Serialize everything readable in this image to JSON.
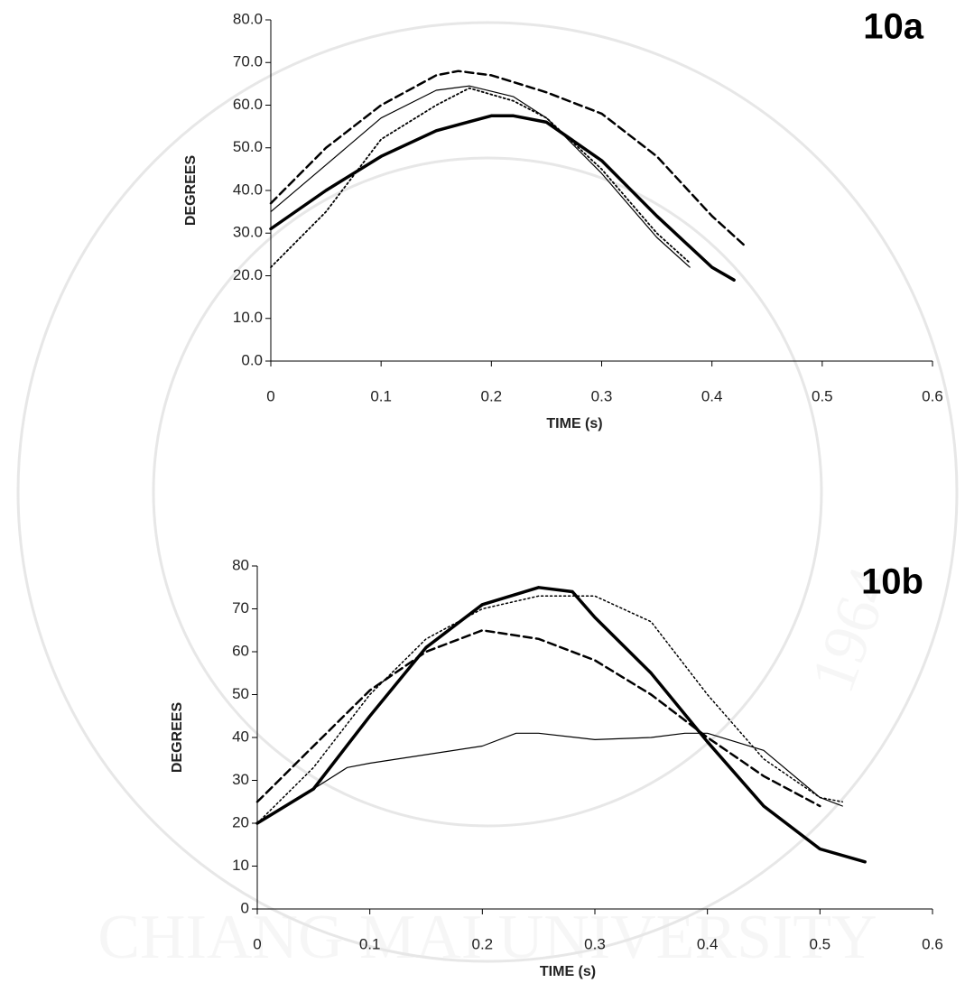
{
  "watermark": {
    "name": "CHIANG MAI UNIVERSITY",
    "year": "1964"
  },
  "chart_data": [
    {
      "type": "line",
      "annotation": "10a",
      "xlabel": "TIME (s)",
      "ylabel": "DEGREES",
      "xlim": [
        0,
        0.6
      ],
      "xticks": [
        0,
        0.1,
        0.2,
        0.3,
        0.4,
        0.5,
        0.6
      ],
      "ylim": [
        0,
        80
      ],
      "yticks": [
        {
          "value": 0,
          "label": "0.0"
        },
        {
          "value": 10,
          "label": "10.0"
        },
        {
          "value": 20,
          "label": "20.0"
        },
        {
          "value": 30,
          "label": "30.0"
        },
        {
          "value": 40,
          "label": "40.0"
        },
        {
          "value": 50,
          "label": "50.0"
        },
        {
          "value": 60,
          "label": "60.0"
        },
        {
          "value": 70,
          "label": "70.0"
        },
        {
          "value": 80,
          "label": "80.0"
        }
      ],
      "series": [
        {
          "color": "#000000",
          "line_style": "solid",
          "line_width": 3.5,
          "x": [
            0,
            0.05,
            0.1,
            0.15,
            0.2,
            0.22,
            0.25,
            0.3,
            0.35,
            0.4,
            0.42
          ],
          "values": [
            31,
            40,
            48,
            54,
            57.5,
            57.5,
            56,
            47,
            34,
            22,
            19
          ]
        },
        {
          "color": "#000000",
          "line_style": "solid",
          "line_width": 1.2,
          "x": [
            0,
            0.05,
            0.1,
            0.15,
            0.18,
            0.22,
            0.25,
            0.3,
            0.35,
            0.38
          ],
          "values": [
            35,
            46,
            57,
            63.5,
            64.5,
            62,
            57,
            44,
            29,
            22
          ]
        },
        {
          "color": "#000000",
          "line_style": "dashed",
          "line_width": 2.5,
          "x": [
            0,
            0.05,
            0.1,
            0.15,
            0.17,
            0.2,
            0.25,
            0.3,
            0.35,
            0.4,
            0.43
          ],
          "values": [
            37,
            50,
            60,
            67,
            68,
            67,
            63,
            58,
            48,
            34,
            27
          ]
        },
        {
          "color": "#000000",
          "line_style": "dotted",
          "line_width": 1.8,
          "x": [
            0,
            0.05,
            0.1,
            0.15,
            0.18,
            0.22,
            0.25,
            0.3,
            0.35,
            0.38
          ],
          "values": [
            22,
            35,
            52,
            60,
            64,
            61,
            57,
            45,
            30,
            23
          ]
        }
      ]
    },
    {
      "type": "line",
      "annotation": "10b",
      "xlabel": "TIME (s)",
      "ylabel": "DEGREES",
      "xlim": [
        0,
        0.6
      ],
      "xticks": [
        0,
        0.1,
        0.2,
        0.3,
        0.4,
        0.5,
        0.6
      ],
      "ylim": [
        0,
        80
      ],
      "yticks": [
        0,
        10,
        20,
        30,
        40,
        50,
        60,
        70,
        80
      ],
      "series": [
        {
          "color": "#000000",
          "line_style": "solid",
          "line_width": 3.5,
          "x": [
            0,
            0.05,
            0.1,
            0.15,
            0.2,
            0.25,
            0.28,
            0.3,
            0.35,
            0.4,
            0.45,
            0.5,
            0.54
          ],
          "values": [
            20,
            28,
            45,
            61,
            71,
            75,
            74,
            68,
            55,
            39,
            24,
            14,
            11
          ]
        },
        {
          "color": "#000000",
          "line_style": "solid",
          "line_width": 1.2,
          "x": [
            0,
            0.05,
            0.08,
            0.1,
            0.15,
            0.2,
            0.23,
            0.25,
            0.3,
            0.35,
            0.38,
            0.4,
            0.45,
            0.5,
            0.52
          ],
          "values": [
            20,
            28,
            33,
            34,
            36,
            38,
            41,
            41,
            39.5,
            40,
            41,
            41,
            37,
            26,
            24
          ]
        },
        {
          "color": "#000000",
          "line_style": "dashed",
          "line_width": 2.5,
          "x": [
            0,
            0.05,
            0.1,
            0.15,
            0.2,
            0.25,
            0.3,
            0.35,
            0.4,
            0.45,
            0.5
          ],
          "values": [
            25,
            38,
            51,
            60,
            65,
            63,
            58,
            50,
            40,
            31,
            24
          ]
        },
        {
          "color": "#000000",
          "line_style": "dotted",
          "line_width": 1.5,
          "x": [
            0,
            0.05,
            0.1,
            0.15,
            0.2,
            0.25,
            0.3,
            0.35,
            0.4,
            0.45,
            0.5,
            0.52
          ],
          "values": [
            20,
            33,
            50,
            63,
            70,
            73,
            73,
            67,
            50,
            35,
            26,
            25
          ]
        }
      ]
    }
  ]
}
